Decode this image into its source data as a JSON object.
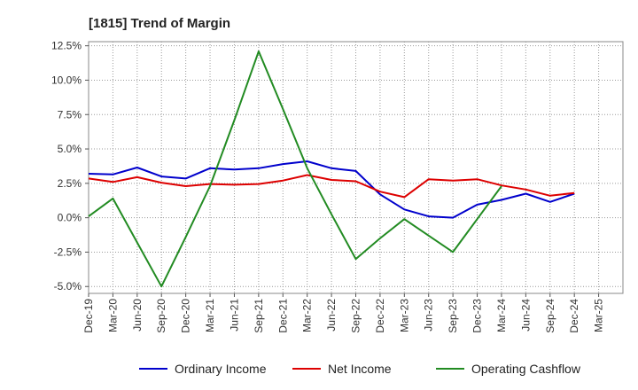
{
  "chart_data": {
    "type": "line",
    "title": "[1815]  Trend of Margin",
    "xlabel": "",
    "ylabel": "",
    "categories": [
      "Dec-19",
      "Mar-20",
      "Jun-20",
      "Sep-20",
      "Dec-20",
      "Mar-21",
      "Jun-21",
      "Sep-21",
      "Dec-21",
      "Mar-22",
      "Jun-22",
      "Sep-22",
      "Dec-22",
      "Mar-23",
      "Jun-23",
      "Sep-23",
      "Dec-23",
      "Mar-24",
      "Jun-24",
      "Sep-24",
      "Dec-24",
      "Mar-25"
    ],
    "ylim": [
      -5.5,
      12.8
    ],
    "yticks": [
      -5.0,
      -2.5,
      0.0,
      2.5,
      5.0,
      7.5,
      10.0,
      12.5
    ],
    "ytick_labels": [
      "-5.0%",
      "-2.5%",
      "0.0%",
      "2.5%",
      "5.0%",
      "7.5%",
      "10.0%",
      "12.5%"
    ],
    "grid": true,
    "legend_position": "bottom",
    "series": [
      {
        "name": "Ordinary Income",
        "color": "#0000cc",
        "values": [
          3.2,
          3.15,
          3.65,
          3.0,
          2.85,
          3.6,
          3.5,
          3.6,
          3.9,
          4.1,
          3.6,
          3.4,
          1.7,
          0.6,
          0.1,
          0.0,
          0.95,
          1.3,
          1.75,
          1.15,
          1.75,
          null
        ]
      },
      {
        "name": "Net Income",
        "color": "#dd0000",
        "values": [
          2.85,
          2.6,
          2.95,
          2.55,
          2.3,
          2.45,
          2.4,
          2.45,
          2.7,
          3.1,
          2.75,
          2.65,
          1.9,
          1.5,
          2.8,
          2.7,
          2.8,
          2.35,
          2.05,
          1.6,
          1.8,
          null
        ]
      },
      {
        "name": "Operating Cashflow",
        "color": "#228b22",
        "values": [
          0.1,
          1.4,
          -1.8,
          -5.0,
          -1.4,
          2.3,
          7.1,
          12.1,
          7.9,
          3.6,
          0.25,
          -3.0,
          -1.5,
          -0.1,
          -1.3,
          -2.5,
          -0.1,
          2.3,
          null,
          null,
          null,
          null
        ]
      }
    ]
  }
}
